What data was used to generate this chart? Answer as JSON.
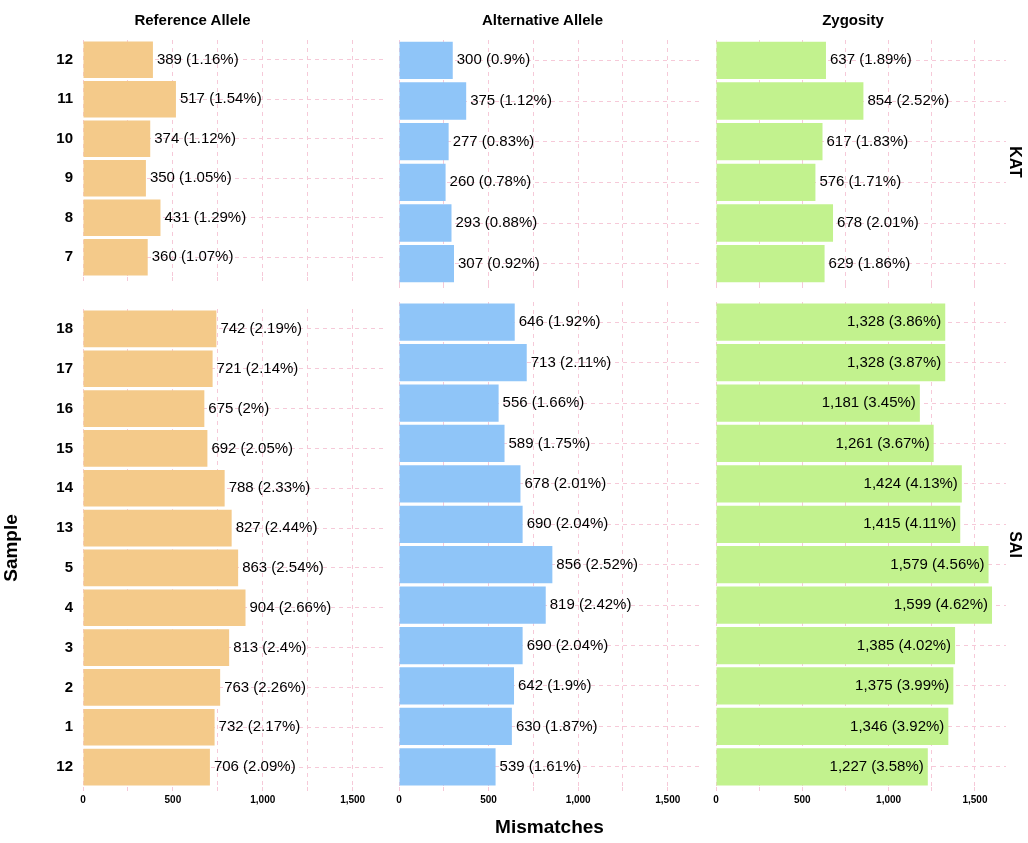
{
  "chart_data": [
    {
      "type": "bar",
      "orientation": "horizontal",
      "title": "Reference Allele",
      "categories": [
        "12",
        "11",
        "10",
        "9",
        "8",
        "7"
      ],
      "values": [
        389,
        517,
        374,
        350,
        431,
        360
      ],
      "value_labels": [
        "389 (1.16%)",
        "517 (1.54%)",
        "374 (1.12%)",
        "350 (1.05%)",
        "431 (1.29%)",
        "360 (1.07%)"
      ],
      "color": "#f4ca8a",
      "xlim": [
        0,
        1680
      ],
      "xticks": [
        {
          "value": 0,
          "label": null
        },
        {
          "value": 250,
          "label": null
        },
        {
          "value": 500,
          "label": null
        },
        {
          "value": 750,
          "label": null
        },
        {
          "value": 1000,
          "label": null
        },
        {
          "value": 1250,
          "label": null
        },
        {
          "value": 1500,
          "label": null
        }
      ],
      "grid": true,
      "tick_labels": "y"
    },
    {
      "type": "bar",
      "orientation": "horizontal",
      "title": "Alternative Allele",
      "categories": [
        "12",
        "11",
        "10",
        "9",
        "8",
        "7"
      ],
      "values": [
        300,
        375,
        277,
        260,
        293,
        307
      ],
      "value_labels": [
        "300 (0.9%)",
        "375 (1.12%)",
        "277 (0.83%)",
        "260 (0.78%)",
        "293 (0.88%)",
        "307 (0.92%)"
      ],
      "color": "#8fc5f8",
      "xlim": [
        0,
        1680
      ],
      "xticks": [
        {
          "value": 0,
          "label": null
        },
        {
          "value": 250,
          "label": null
        },
        {
          "value": 500,
          "label": null
        },
        {
          "value": 750,
          "label": null
        },
        {
          "value": 1000,
          "label": null
        },
        {
          "value": 1250,
          "label": null
        },
        {
          "value": 1500,
          "label": null
        }
      ],
      "grid": true,
      "tick_labels": false
    },
    {
      "type": "bar",
      "orientation": "horizontal",
      "title": "Zygosity",
      "y2label": "KAT",
      "categories": [
        "12",
        "11",
        "10",
        "9",
        "8",
        "7"
      ],
      "values": [
        637,
        854,
        617,
        576,
        678,
        629
      ],
      "value_labels": [
        "637 (1.89%)",
        "854 (2.52%)",
        "617 (1.83%)",
        "576 (1.71%)",
        "678 (2.01%)",
        "629 (1.86%)"
      ],
      "color": "#c2f28e",
      "xlim": [
        0,
        1680
      ],
      "xticks": [
        {
          "value": 0,
          "label": null
        },
        {
          "value": 250,
          "label": null
        },
        {
          "value": 500,
          "label": null
        },
        {
          "value": 750,
          "label": null
        },
        {
          "value": 1000,
          "label": null
        },
        {
          "value": 1250,
          "label": null
        },
        {
          "value": 1500,
          "label": null
        }
      ],
      "grid": true,
      "tick_labels": false
    },
    {
      "type": "bar",
      "orientation": "horizontal",
      "ylabel": "Sample",
      "categories": [
        "18",
        "17",
        "16",
        "15",
        "14",
        "13",
        "5",
        "4",
        "3",
        "2",
        "1",
        "12"
      ],
      "values": [
        742,
        721,
        675,
        692,
        788,
        827,
        863,
        904,
        813,
        763,
        732,
        706
      ],
      "value_labels": [
        "742 (2.19%)",
        "721 (2.14%)",
        "675 (2%)",
        "692 (2.05%)",
        "788 (2.33%)",
        "827 (2.44%)",
        "863 (2.54%)",
        "904 (2.66%)",
        "813 (2.4%)",
        "763 (2.26%)",
        "732 (2.17%)",
        "706 (2.09%)"
      ],
      "color": "#f4ca8a",
      "xlim": [
        0,
        1680
      ],
      "xticks": [
        {
          "value": 0,
          "label": "0"
        },
        {
          "value": 250,
          "label": null
        },
        {
          "value": 500,
          "label": "500"
        },
        {
          "value": 750,
          "label": null
        },
        {
          "value": 1000,
          "label": "1,000"
        },
        {
          "value": 1250,
          "label": null
        },
        {
          "value": 1500,
          "label": "1,500"
        }
      ],
      "grid": true
    },
    {
      "type": "bar",
      "orientation": "horizontal",
      "xlabel": "Mismatches",
      "categories": [
        "18",
        "17",
        "16",
        "15",
        "14",
        "13",
        "5",
        "4",
        "3",
        "2",
        "1",
        "12"
      ],
      "values": [
        646,
        713,
        556,
        589,
        678,
        690,
        856,
        819,
        690,
        642,
        630,
        539
      ],
      "value_labels": [
        "646 (1.92%)",
        "713 (2.11%)",
        "556 (1.66%)",
        "589 (1.75%)",
        "678 (2.01%)",
        "690 (2.04%)",
        "856 (2.52%)",
        "819 (2.42%)",
        "690 (2.04%)",
        "642 (1.9%)",
        "630 (1.87%)",
        "539 (1.61%)"
      ],
      "color": "#8fc5f8",
      "xlim": [
        0,
        1680
      ],
      "xticks": [
        {
          "value": 0,
          "label": "0"
        },
        {
          "value": 250,
          "label": null
        },
        {
          "value": 500,
          "label": "500"
        },
        {
          "value": 750,
          "label": null
        },
        {
          "value": 1000,
          "label": "1,000"
        },
        {
          "value": 1250,
          "label": null
        },
        {
          "value": 1500,
          "label": "1,500"
        }
      ],
      "grid": true,
      "tick_labels": "x"
    },
    {
      "type": "bar",
      "orientation": "horizontal",
      "y2label": "SAI",
      "categories": [
        "18",
        "17",
        "16",
        "15",
        "14",
        "13",
        "5",
        "4",
        "3",
        "2",
        "1",
        "12"
      ],
      "values": [
        1328,
        1328,
        1181,
        1261,
        1424,
        1415,
        1579,
        1599,
        1385,
        1375,
        1346,
        1227
      ],
      "value_labels": [
        "1,328 (3.86%)",
        "1,328 (3.87%)",
        "1,181 (3.45%)",
        "1,261 (3.67%)",
        "1,424 (4.13%)",
        "1,415 (4.11%)",
        "1,579 (4.56%)",
        "1,599 (4.62%)",
        "1,385 (4.02%)",
        "1,375 (3.99%)",
        "1,346 (3.92%)",
        "1,227 (3.58%)"
      ],
      "color": "#c2f28e",
      "xlim": [
        0,
        1680
      ],
      "xticks": [
        {
          "value": 0,
          "label": "0"
        },
        {
          "value": 250,
          "label": null
        },
        {
          "value": 500,
          "label": "500"
        },
        {
          "value": 750,
          "label": null
        },
        {
          "value": 1000,
          "label": "1,000"
        },
        {
          "value": 1250,
          "label": null
        },
        {
          "value": 1500,
          "label": "1,500"
        }
      ],
      "grid": true,
      "tick_labels": "x"
    }
  ]
}
